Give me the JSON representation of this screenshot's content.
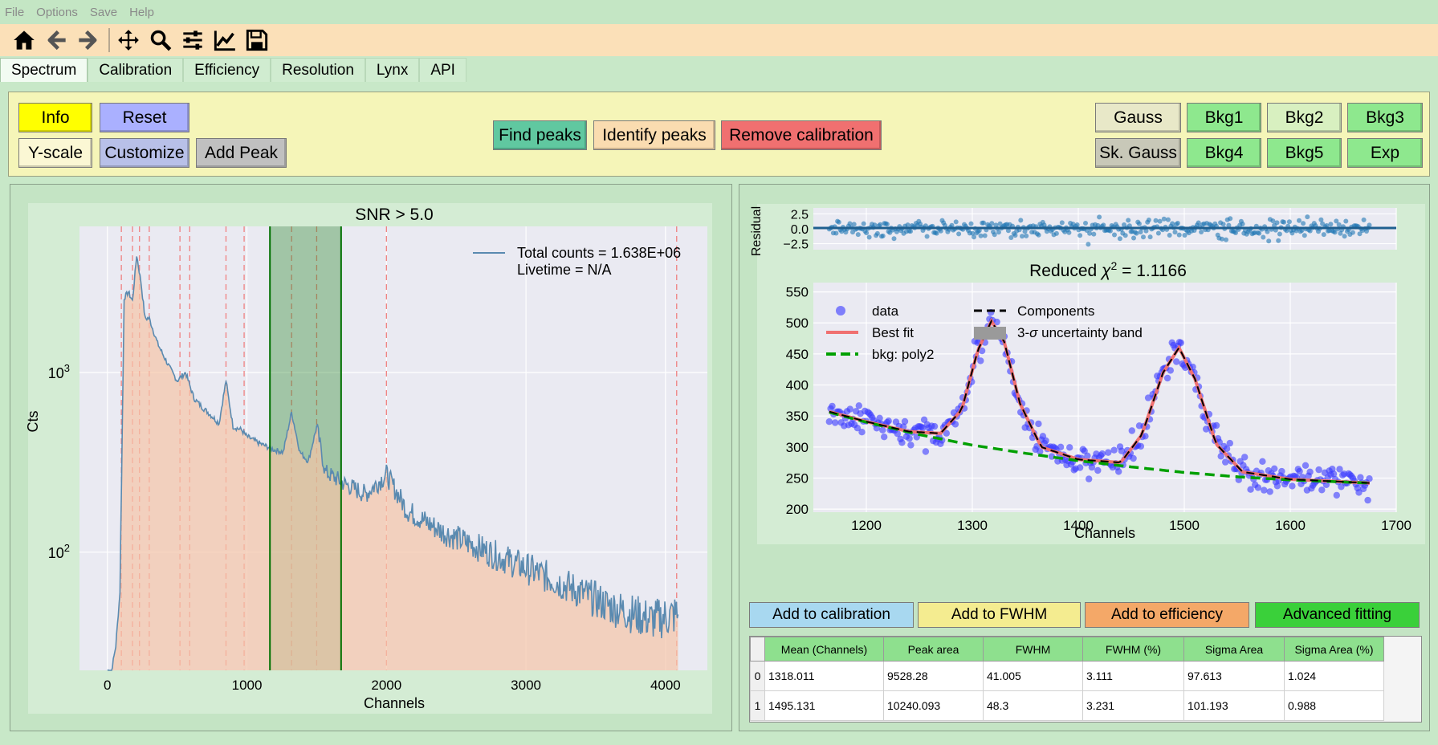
{
  "menu": [
    "File",
    "Options",
    "Save",
    "Help"
  ],
  "toolbar": {
    "icons": [
      "home-icon",
      "back-arrow-icon",
      "forward-arrow-icon",
      "pan-icon",
      "zoom-icon",
      "sliders-icon",
      "line-chart-icon",
      "save-disk-icon"
    ]
  },
  "tabs": [
    "Spectrum",
    "Calibration",
    "Efficiency",
    "Resolution",
    "Lynx",
    "API"
  ],
  "active_tab": "Spectrum",
  "controls": {
    "info": "Info",
    "reset": "Reset",
    "yscale": "Y-scale",
    "customize": "Customize",
    "add_peak": "Add Peak",
    "find_peaks": "Find peaks",
    "identify_peaks": "Identify peaks",
    "remove_calibration": "Remove calibration",
    "gauss": "Gauss",
    "bkg1": "Bkg1",
    "bkg2": "Bkg2",
    "bkg3": "Bkg3",
    "sk_gauss": "Sk. Gauss",
    "bkg4": "Bkg4",
    "bkg5": "Bkg5",
    "exp": "Exp"
  },
  "colors": {
    "info": "#ffff00",
    "reset": "#aab0ff",
    "customize": "#b8c0e8",
    "add_peak": "#c0c0c0",
    "find_peaks": "#60c8a0",
    "identify_peaks": "#fadcb0",
    "remove_calibration": "#f07070",
    "gauss": "#e8e8c8",
    "bkg": "#8ee88e",
    "bkg2": "#d8f0c0"
  },
  "spectrum_plot": {
    "title": "SNR > 5.0",
    "xlabel": "Channels",
    "ylabel": "Cts",
    "legend_total": "Total counts = 1.638E+06",
    "legend_live": "Livetime = N/A",
    "x_ticks": [
      "0",
      "1000",
      "2000",
      "3000",
      "4000"
    ],
    "y_ticks_base": "10",
    "y_tick_exps": [
      "3",
      "2"
    ]
  },
  "fit_plot": {
    "title_prefix": "Reduced ",
    "title_chi": "χ",
    "title_sup": "2",
    "title_value": " = 1.1166",
    "residual_label": "Residual",
    "residual_ticks": [
      "2.5",
      "0.0",
      "−2.5"
    ],
    "xlabel": "Channels",
    "x_ticks": [
      "1200",
      "1300",
      "1400",
      "1500",
      "1600",
      "1700"
    ],
    "y_ticks": [
      "550",
      "500",
      "450",
      "400",
      "350",
      "300",
      "250",
      "200"
    ],
    "legend": {
      "data": "data",
      "best_fit": "Best fit",
      "bkg": "bkg: poly2",
      "components": "Components",
      "band_pre": "3-",
      "band_sigma": "σ",
      "band_post": " uncertainty band"
    }
  },
  "fit_buttons": {
    "calibration": "Add to calibration",
    "fwhm": "Add to FWHM",
    "efficiency": "Add to efficiency",
    "advanced": "Advanced fitting"
  },
  "results_table": {
    "columns": [
      "Mean (Channels)",
      "Peak area",
      "FWHM",
      "FWHM (%)",
      "Sigma Area",
      "Sigma Area (%)"
    ],
    "rows": [
      {
        "index": "0",
        "cells": [
          "1318.011",
          "9528.28",
          "41.005",
          "3.111",
          "97.613",
          "1.024"
        ]
      },
      {
        "index": "1",
        "cells": [
          "1495.131",
          "10240.093",
          "48.3",
          "3.231",
          "101.193",
          "0.988"
        ]
      }
    ]
  },
  "chart_data": [
    {
      "type": "line",
      "title": "SNR > 5.0",
      "xlabel": "Channels",
      "ylabel": "Cts",
      "yscale": "log",
      "xlim": [
        -200,
        4300
      ],
      "ylim": [
        22,
        6500
      ],
      "series": [
        {
          "name": "Total counts = 1.638E+06",
          "x": [
            0,
            30,
            60,
            90,
            120,
            150,
            180,
            210,
            240,
            270,
            300,
            330,
            360,
            400,
            450,
            500,
            560,
            620,
            680,
            720,
            760,
            800,
            850,
            900,
            960,
            1000,
            1100,
            1200,
            1260,
            1320,
            1380,
            1440,
            1500,
            1560,
            1700,
            1850,
            2000,
            2150,
            2400,
            2800,
            3200,
            3600,
            3900,
            4090
          ],
          "y": [
            22,
            22,
            30,
            60,
            2600,
            2800,
            2500,
            4500,
            3200,
            2000,
            2000,
            1700,
            1450,
            1250,
            1050,
            900,
            1000,
            720,
            640,
            600,
            560,
            520,
            900,
            500,
            480,
            440,
            400,
            370,
            360,
            600,
            360,
            320,
            500,
            280,
            240,
            210,
            270,
            170,
            130,
            95,
            70,
            50,
            42,
            45
          ]
        }
      ],
      "peak_lines": [
        100,
        180,
        230,
        300,
        520,
        590,
        850,
        980,
        1320,
        1500,
        2000,
        4080
      ],
      "selected_region": [
        1165,
        1675
      ]
    },
    {
      "type": "scatter",
      "title": "Reduced χ2 = 1.1166",
      "xlabel": "Channels",
      "xlim": [
        1150,
        1700
      ],
      "ylim": [
        195,
        565
      ],
      "series": [
        {
          "name": "data",
          "x": [
            1165,
            1180,
            1200,
            1220,
            1240,
            1260,
            1280,
            1300,
            1310,
            1318,
            1330,
            1350,
            1370,
            1400,
            1420,
            1440,
            1460,
            1480,
            1495,
            1510,
            1530,
            1550,
            1580,
            1620,
            1660,
            1675
          ],
          "y": [
            362,
            352,
            342,
            333,
            325,
            318,
            330,
            420,
            510,
            540,
            480,
            350,
            295,
            282,
            278,
            270,
            330,
            420,
            460,
            405,
            310,
            265,
            250,
            245,
            240,
            240
          ]
        },
        {
          "name": "Best fit",
          "x": [
            1165,
            1200,
            1240,
            1270,
            1290,
            1305,
            1318,
            1330,
            1345,
            1365,
            1400,
            1440,
            1460,
            1480,
            1495,
            1510,
            1530,
            1555,
            1600,
            1675
          ],
          "y": [
            357,
            341,
            325,
            322,
            360,
            455,
            503,
            470,
            370,
            300,
            280,
            275,
            320,
            420,
            460,
            410,
            305,
            260,
            248,
            242
          ]
        },
        {
          "name": "bkg: poly2",
          "x": [
            1165,
            1200,
            1250,
            1300,
            1350,
            1400,
            1450,
            1500,
            1550,
            1600,
            1675
          ],
          "y": [
            356,
            340,
            320,
            303,
            290,
            278,
            268,
            259,
            252,
            247,
            242
          ]
        }
      ],
      "residual": {
        "ylabel": "Residual",
        "ylim": [
          -3.5,
          3.5
        ],
        "ticks": [
          2.5,
          0.0,
          -2.5
        ]
      }
    }
  ]
}
